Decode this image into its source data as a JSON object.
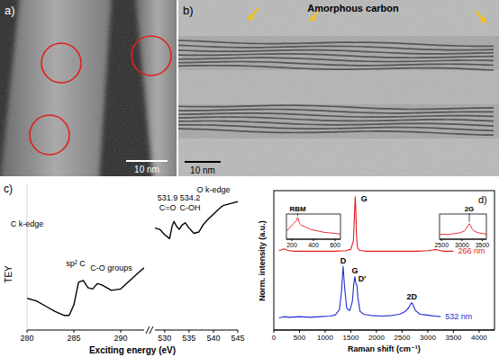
{
  "panels": {
    "a": {
      "label": "a)",
      "scale_bar": "10 nm"
    },
    "b": {
      "label": "b)",
      "title": "Amorphous carbon",
      "scale_bar": "10 nm"
    },
    "c": {
      "label": "c)"
    },
    "d": {
      "label": "d)"
    }
  },
  "chart_data": [
    {
      "type": "line",
      "y_label": "TEY",
      "x_label": "Exciting energy (eV)",
      "xlim": [
        280,
        292.5
      ],
      "xticks": [
        280,
        285,
        290
      ],
      "ylim": [
        0,
        1.1
      ],
      "tick_labels": "x",
      "series": [
        {
          "color": "#000000",
          "x": [
            280,
            281,
            282,
            283,
            284,
            284.5,
            285,
            285.5,
            286,
            286.5,
            287,
            287.5,
            288,
            289,
            290,
            291,
            292,
            292.5
          ],
          "values": [
            0.24,
            0.22,
            0.18,
            0.14,
            0.11,
            0.11,
            0.19,
            0.36,
            0.375,
            0.32,
            0.31,
            0.35,
            0.34,
            0.3,
            0.31,
            0.375,
            0.44,
            0.47
          ]
        }
      ],
      "annotations": [
        {
          "text": "C k-edge",
          "x": 280,
          "y": 0.78
        },
        {
          "text": "sp² C",
          "x": 285.2,
          "y": 0.48
        },
        {
          "text": "C-O groups",
          "x": 289,
          "y": 0.45
        }
      ]
    },
    {
      "type": "line",
      "xlim": [
        528,
        545
      ],
      "xticks": [
        530,
        535,
        540,
        545
      ],
      "ylim": [
        0,
        1.1
      ],
      "tick_labels": "x",
      "series": [
        {
          "color": "#000000",
          "x": [
            528,
            529,
            530,
            531,
            531.5,
            531.9,
            532.5,
            533,
            533.5,
            534.2,
            535,
            536,
            537,
            538,
            539,
            540,
            541,
            542,
            543,
            545
          ],
          "values": [
            0.77,
            0.76,
            0.72,
            0.69,
            0.78,
            0.82,
            0.78,
            0.76,
            0.79,
            0.81,
            0.77,
            0.73,
            0.74,
            0.8,
            0.84,
            0.875,
            0.91,
            0.94,
            0.95,
            0.97
          ]
        }
      ],
      "annotations": [
        {
          "text": "O k-edge",
          "x": 540,
          "y": 1.04
        },
        {
          "text": "531.9",
          "x": 530.6,
          "y": 0.98
        },
        {
          "text": "C=O",
          "x": 530.6,
          "y": 0.9
        },
        {
          "text": "534.2",
          "x": 535.2,
          "y": 0.98
        },
        {
          "text": "C-OH",
          "x": 535.2,
          "y": 0.9
        }
      ]
    },
    {
      "type": "line",
      "y_label": "Norm. intensity (a.u.)",
      "x_label": "Raman shift (cm⁻¹)",
      "xlim": [
        0,
        4300
      ],
      "xticks": [
        0,
        500,
        1000,
        1500,
        2000,
        2500,
        3000,
        3500,
        4000
      ],
      "ylim": [
        0,
        2.3
      ],
      "tick_labels": "x",
      "series": [
        {
          "name": "266 nm",
          "color": "#e41a1c",
          "x": [
            100,
            200,
            250,
            300,
            400,
            600,
            800,
            1000,
            1200,
            1400,
            1500,
            1550,
            1570,
            1585,
            1595,
            1610,
            1630,
            1660,
            1700,
            1800,
            2000,
            2200,
            2400,
            2600,
            2800,
            3000,
            3100,
            3150,
            3200,
            3250,
            3300,
            3400,
            3500
          ],
          "values": [
            1.31,
            1.34,
            1.32,
            1.31,
            1.3,
            1.3,
            1.3,
            1.3,
            1.3,
            1.31,
            1.33,
            1.47,
            1.87,
            2.2,
            2.05,
            1.57,
            1.37,
            1.32,
            1.31,
            1.3,
            1.3,
            1.3,
            1.3,
            1.3,
            1.3,
            1.31,
            1.32,
            1.33,
            1.32,
            1.31,
            1.3,
            1.3,
            1.3
          ]
        },
        {
          "name": "532 nm",
          "color": "#1f2fd0",
          "x": [
            100,
            200,
            300,
            500,
            700,
            900,
            1100,
            1200,
            1280,
            1320,
            1350,
            1380,
            1420,
            1480,
            1530,
            1560,
            1580,
            1600,
            1620,
            1640,
            1680,
            1750,
            1900,
            2100,
            2300,
            2450,
            2550,
            2620,
            2660,
            2690,
            2720,
            2760,
            2850,
            2950,
            3050,
            3150,
            3250
          ],
          "values": [
            0.2,
            0.22,
            0.21,
            0.22,
            0.21,
            0.22,
            0.23,
            0.25,
            0.34,
            0.65,
            1.05,
            0.7,
            0.36,
            0.32,
            0.47,
            0.78,
            0.88,
            0.76,
            0.74,
            0.52,
            0.31,
            0.26,
            0.24,
            0.23,
            0.24,
            0.26,
            0.3,
            0.36,
            0.42,
            0.45,
            0.4,
            0.32,
            0.26,
            0.25,
            0.24,
            0.23,
            0.22
          ]
        }
      ],
      "annotations": [
        {
          "text": "G",
          "x": 1760,
          "y": 2.12
        },
        {
          "text": "D",
          "x": 1350,
          "y": 1.1
        },
        {
          "text": "G",
          "x": 1580,
          "y": 0.93
        },
        {
          "text": "D'",
          "x": 1720,
          "y": 0.8
        },
        {
          "text": "2D",
          "x": 2690,
          "y": 0.5
        }
      ]
    },
    {
      "type": "line",
      "xlim": [
        150,
        650
      ],
      "xticks": [
        200,
        400,
        600
      ],
      "ylim": [
        0,
        1.1
      ],
      "tick_labels": "x",
      "series": [
        {
          "color": "#e41a1c",
          "x": [
            150,
            180,
            200,
            220,
            240,
            255,
            270,
            290,
            320,
            360,
            400,
            450,
            500,
            550,
            600,
            650
          ],
          "values": [
            0.35,
            0.5,
            0.6,
            0.7,
            0.8,
            0.95,
            0.7,
            0.6,
            0.55,
            0.45,
            0.4,
            0.35,
            0.3,
            0.28,
            0.25,
            0.22
          ]
        }
      ],
      "annotations": [
        {
          "text": "RBM",
          "x": 255,
          "y": 0.95
        }
      ]
    },
    {
      "type": "line",
      "xlim": [
        2450,
        3600
      ],
      "xticks": [
        2500,
        3000,
        3500
      ],
      "ylim": [
        0,
        1.1
      ],
      "tick_labels": "x",
      "series": [
        {
          "color": "#e41a1c",
          "x": [
            2450,
            2550,
            2650,
            2750,
            2850,
            2950,
            3050,
            3100,
            3150,
            3180,
            3210,
            3250,
            3300,
            3400,
            3500,
            3600
          ],
          "values": [
            0.2,
            0.22,
            0.2,
            0.23,
            0.25,
            0.28,
            0.35,
            0.45,
            0.6,
            0.68,
            0.6,
            0.45,
            0.35,
            0.28,
            0.25,
            0.22
          ]
        }
      ],
      "annotations": [
        {
          "text": "2G",
          "x": 3180,
          "y": 0.68
        }
      ]
    }
  ]
}
